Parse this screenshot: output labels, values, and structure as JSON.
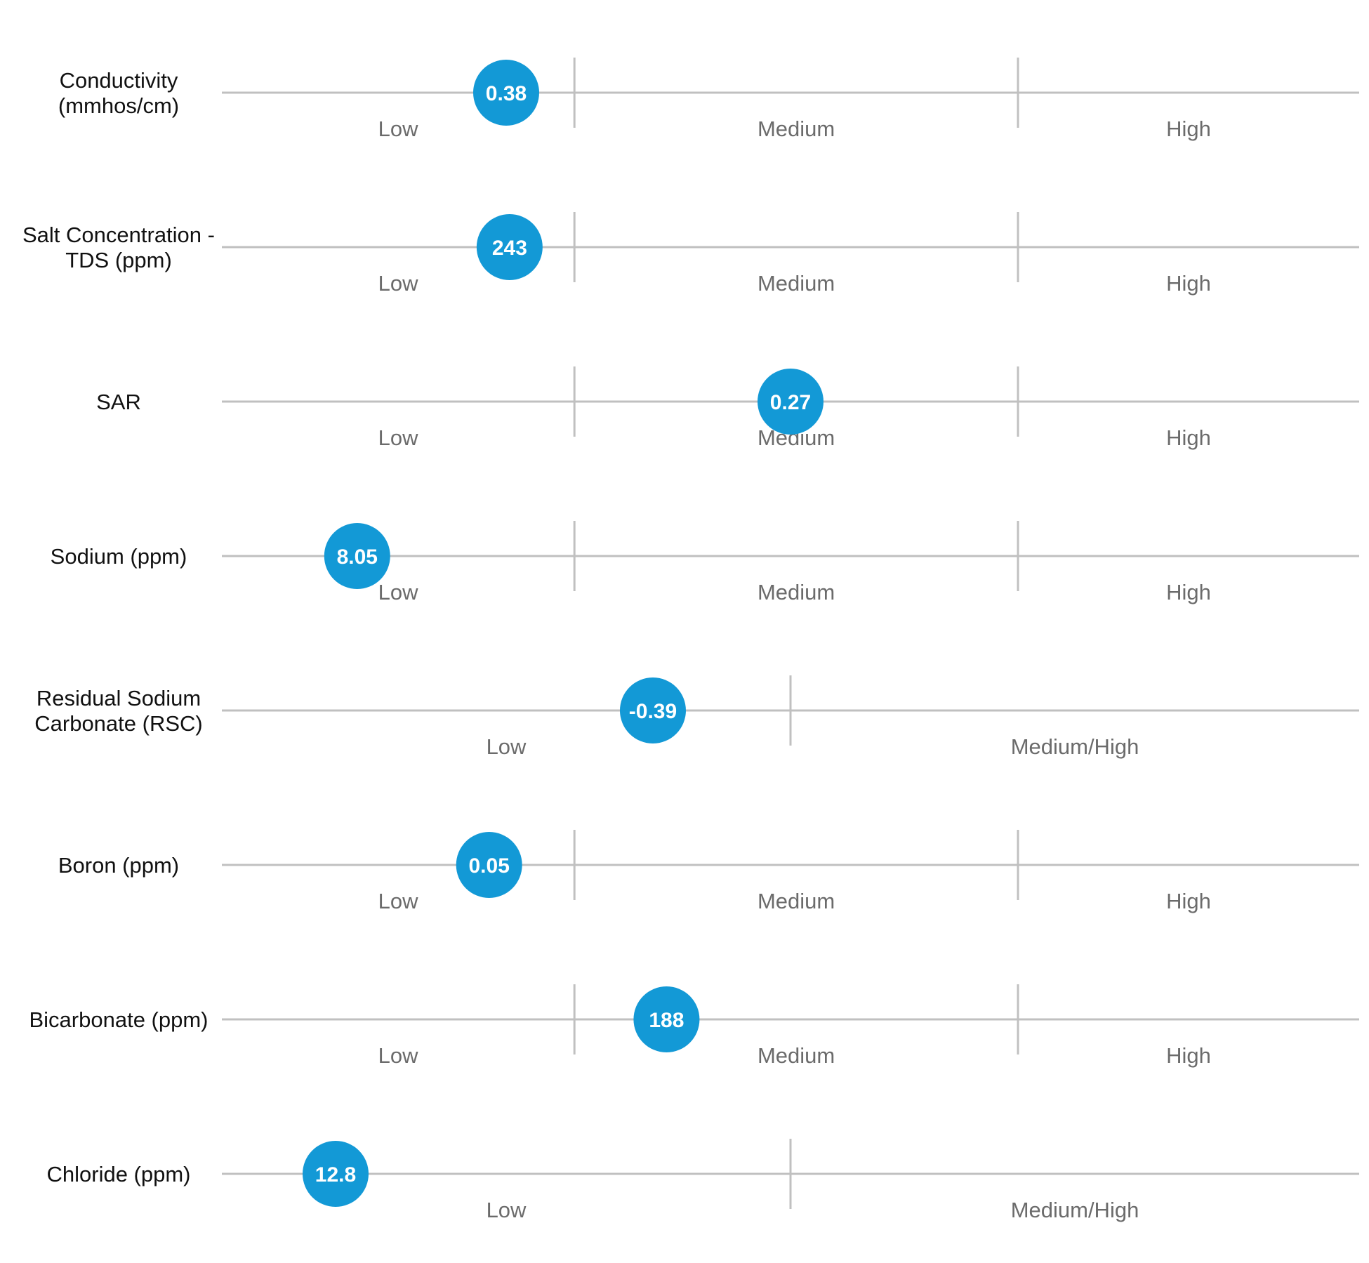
{
  "chart_data": {
    "type": "scatter",
    "title": "",
    "marker_color": "#1399d6",
    "line_color": "#c0c0c0",
    "rows": [
      {
        "label": [
          "Conductivity",
          "(mmhos/cm)"
        ],
        "value": "0.38",
        "bands": [
          "Low",
          "Medium",
          "High"
        ],
        "band_edges": [
          0,
          0.31,
          0.7,
          1.0
        ],
        "position": 0.25
      },
      {
        "label": [
          "Salt Concentration -",
          "TDS (ppm)"
        ],
        "value": "243",
        "bands": [
          "Low",
          "Medium",
          "High"
        ],
        "band_edges": [
          0,
          0.31,
          0.7,
          1.0
        ],
        "position": 0.253
      },
      {
        "label": [
          "SAR"
        ],
        "value": "0.27",
        "bands": [
          "Low",
          "Medium",
          "High"
        ],
        "band_edges": [
          0,
          0.31,
          0.7,
          1.0
        ],
        "position": 0.5
      },
      {
        "label": [
          "Sodium (ppm)"
        ],
        "value": "8.05",
        "bands": [
          "Low",
          "Medium",
          "High"
        ],
        "band_edges": [
          0,
          0.31,
          0.7,
          1.0
        ],
        "position": 0.119
      },
      {
        "label": [
          "Residual Sodium",
          "Carbonate (RSC)"
        ],
        "value": "-0.39",
        "bands": [
          "Low",
          "Medium/High"
        ],
        "band_edges": [
          0,
          0.5,
          1.0
        ],
        "position": 0.379
      },
      {
        "label": [
          "Boron (ppm)"
        ],
        "value": "0.05",
        "bands": [
          "Low",
          "Medium",
          "High"
        ],
        "band_edges": [
          0,
          0.31,
          0.7,
          1.0
        ],
        "position": 0.235
      },
      {
        "label": [
          "Bicarbonate (ppm)"
        ],
        "value": "188",
        "bands": [
          "Low",
          "Medium",
          "High"
        ],
        "band_edges": [
          0,
          0.31,
          0.7,
          1.0
        ],
        "position": 0.391
      },
      {
        "label": [
          "Chloride (ppm)"
        ],
        "value": "12.8",
        "bands": [
          "Low",
          "Medium/High"
        ],
        "band_edges": [
          0,
          0.5,
          1.0
        ],
        "position": 0.1
      }
    ]
  }
}
